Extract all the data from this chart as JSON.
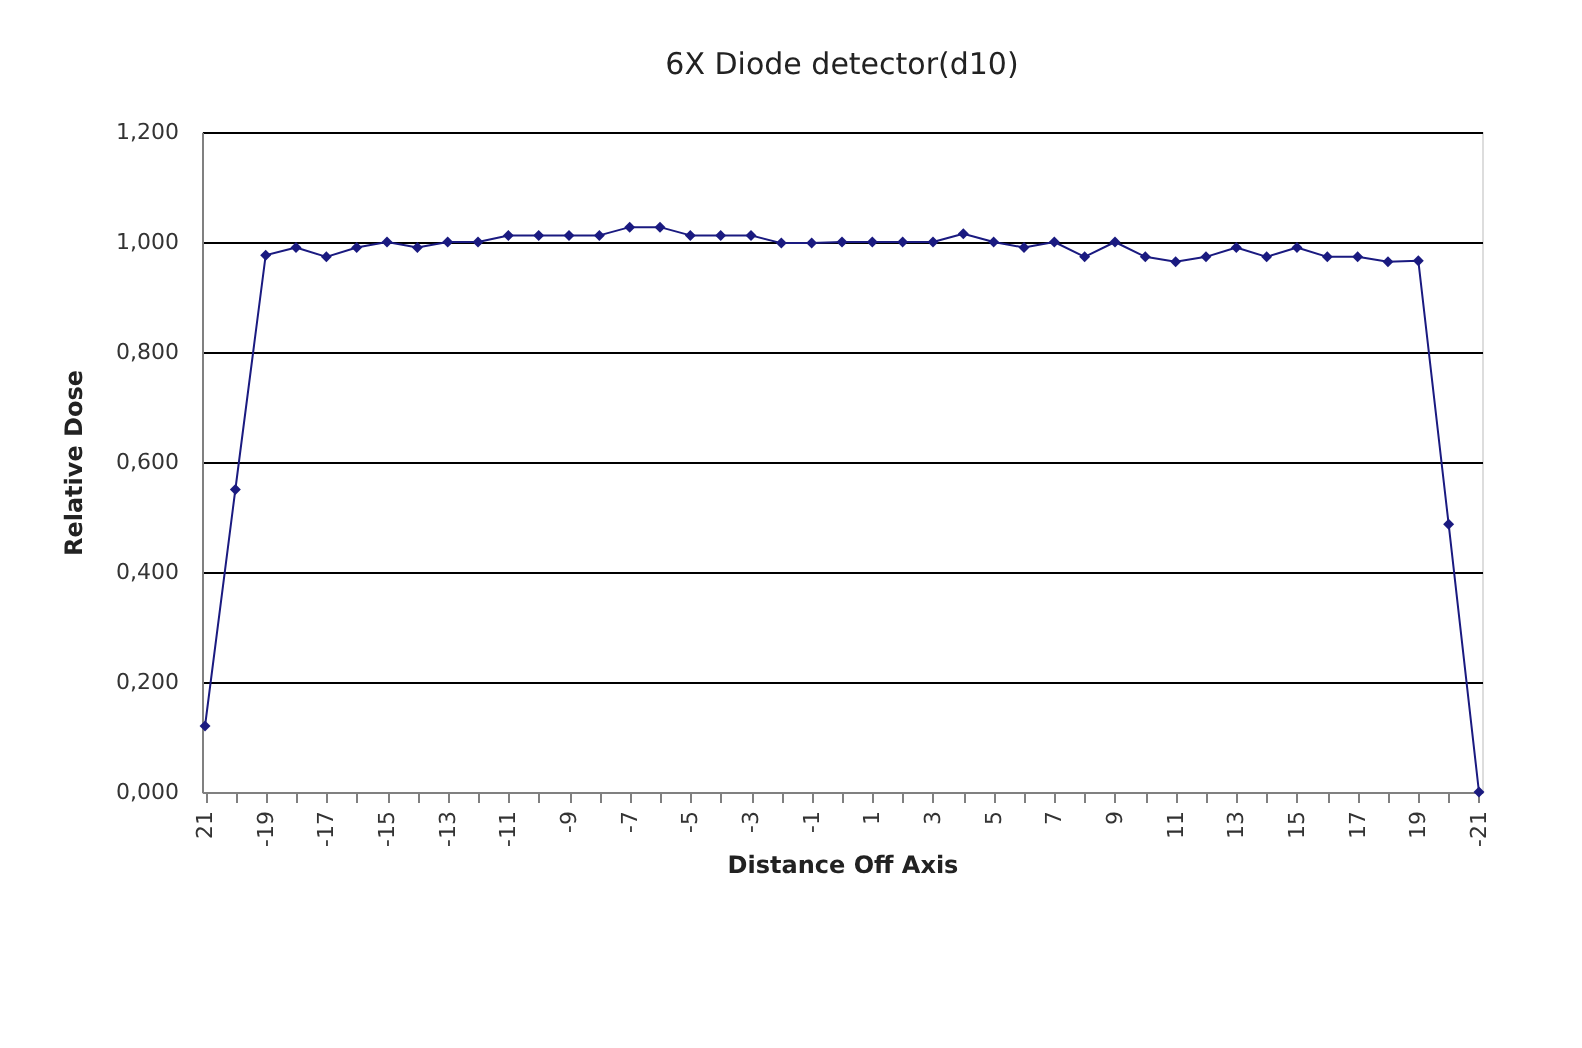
{
  "chart_data": {
    "type": "line",
    "title": "6X Diode detector(d10)",
    "xlabel": "Distance Off Axis",
    "ylabel": "Relative Dose",
    "categories": [
      "21",
      null,
      "-19",
      null,
      "-17",
      null,
      "-15",
      null,
      "-13",
      null,
      "-11",
      null,
      "-9",
      null,
      "-7",
      null,
      "-5",
      null,
      "-3",
      null,
      "-1",
      null,
      "1",
      null,
      "3",
      null,
      "5",
      null,
      "7",
      null,
      "9",
      null,
      "11",
      null,
      "13",
      null,
      "15",
      null,
      "17",
      null,
      "19",
      null,
      "-21"
    ],
    "series": [
      {
        "color": "#1a1a80",
        "values": [
          0.12,
          0.55,
          0.976,
          0.99,
          0.973,
          0.99,
          1.0,
          0.99,
          1.0,
          1.0,
          1.012,
          1.012,
          1.012,
          1.012,
          1.027,
          1.027,
          1.012,
          1.012,
          1.012,
          0.998,
          0.998,
          1.0,
          1.0,
          1.0,
          1.0,
          1.015,
          1.0,
          0.99,
          1.0,
          0.973,
          1.0,
          0.973,
          0.964,
          0.973,
          0.99,
          0.973,
          0.99,
          0.973,
          0.973,
          0.964,
          0.966,
          0.487,
          0.0
        ]
      }
    ],
    "ylim": [
      0,
      1.2
    ],
    "yticks": [
      {
        "value": 0,
        "label": "0,000"
      },
      {
        "value": 0.2,
        "label": "0,200"
      },
      {
        "value": 0.4,
        "label": "0,400"
      },
      {
        "value": 0.6,
        "label": "0,600"
      },
      {
        "value": 0.8,
        "label": "0,800"
      },
      {
        "value": 1.0,
        "label": "1,000"
      },
      {
        "value": 1.2,
        "label": "1,200"
      }
    ],
    "grid": "y",
    "marker": "diamond",
    "line_style": "solid"
  }
}
